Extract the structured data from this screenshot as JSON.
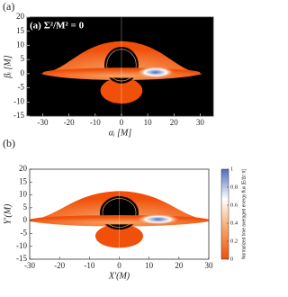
{
  "chart_data": [
    {
      "type": "image",
      "panel_label": "(a)",
      "annotation": "(a) Σ²/M² = 0",
      "background": "#000000",
      "colormap": [
        "#f0500a",
        "#f7a466",
        "#ffffff",
        "#4a6cc0"
      ],
      "xlabel": "αᵢ [M]",
      "ylabel": "βᵢ [M]",
      "xlim": [
        -36,
        35
      ],
      "ylim": [
        -15,
        20
      ],
      "xticks": [
        -30,
        -20,
        -10,
        0,
        10,
        20,
        30
      ],
      "yticks": [
        -15,
        -10,
        -5,
        0,
        5,
        10,
        15,
        20
      ]
    },
    {
      "type": "image",
      "panel_label": "(b)",
      "background": "#ffffff",
      "colormap": [
        "#f0500a",
        "#f7a466",
        "#ffffff",
        "#4a6cc0"
      ],
      "xlabel": "X′(M)",
      "ylabel": "Y′(M)",
      "xlim": [
        -30,
        30
      ],
      "ylim": [
        -15,
        20
      ],
      "xticks": [
        -30,
        -20,
        -10,
        0,
        10,
        20,
        30
      ],
      "yticks": [
        -15,
        -10,
        -5,
        0,
        5,
        10,
        15,
        20
      ],
      "colorbar": {
        "label": "Normalized time averaged energy flux [E/Δτ·π]",
        "lim": [
          0,
          1
        ],
        "ticks": [
          0,
          0.2,
          0.4,
          0.6,
          0.8,
          1
        ]
      }
    }
  ]
}
